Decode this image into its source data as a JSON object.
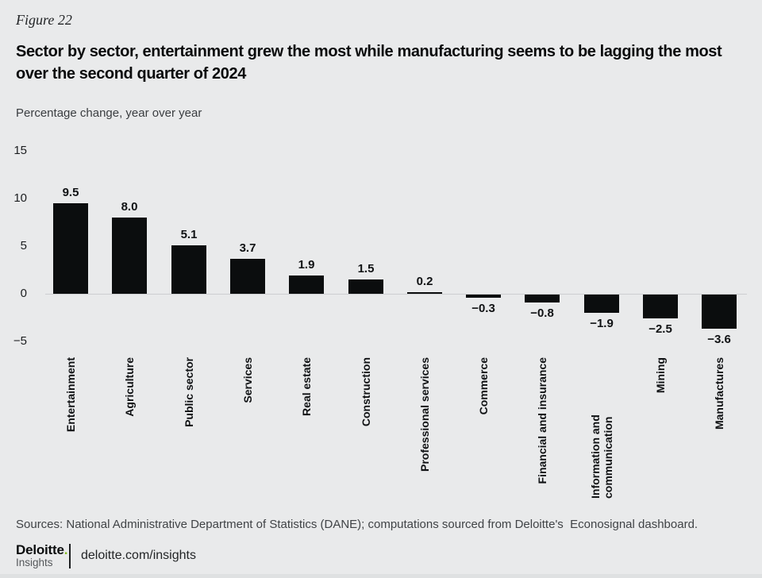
{
  "figure_label": "Figure 22",
  "title": "Sector by sector, entertainment grew the most while manufacturing seems to be lagging the most over the second quarter of 2024",
  "subtitle": "Percentage change, year over year",
  "chart_data": {
    "type": "bar",
    "title": "Sector by sector, entertainment grew the most while manufacturing seems to be lagging the most over the second quarter of 2024",
    "ylabel": "Percentage change, year over year",
    "categories": [
      "Entertainment",
      "Agriculture",
      "Public sector",
      "Services",
      "Real estate",
      "Construction",
      "Professional services",
      "Commerce",
      "Financial and insurance",
      "Information and communication",
      "Mining",
      "Manufactures"
    ],
    "values": [
      9.5,
      8.0,
      5.1,
      3.7,
      1.9,
      1.5,
      0.2,
      -0.3,
      -0.8,
      -1.9,
      -2.5,
      -3.6
    ],
    "value_labels": [
      "9.5",
      "8.0",
      "5.1",
      "3.7",
      "1.9",
      "1.5",
      "0.2",
      "−0.3",
      "−0.8",
      "−1.9",
      "−2.5",
      "−3.6"
    ],
    "y_ticks": [
      15,
      10,
      5,
      0,
      -5
    ],
    "y_tick_labels": [
      "15",
      "10",
      "5",
      "0",
      "−5"
    ],
    "ylim": [
      -5,
      15
    ],
    "grid": false,
    "legend": null,
    "bar_color": "#0b0d0e"
  },
  "source_note": "Sources: National Administrative Department of Statistics (DANE); computations sourced from Deloitte's  Econosignal dashboard.",
  "footer": {
    "brand_name": "Deloitte",
    "brand_dot": ".",
    "brand_sub": "Insights",
    "link": "deloitte.com/insights"
  },
  "colors": {
    "background": "#e9eaeb",
    "bar": "#0b0d0e",
    "brand_green": "#86bc25",
    "baseline": "#cdced0"
  }
}
